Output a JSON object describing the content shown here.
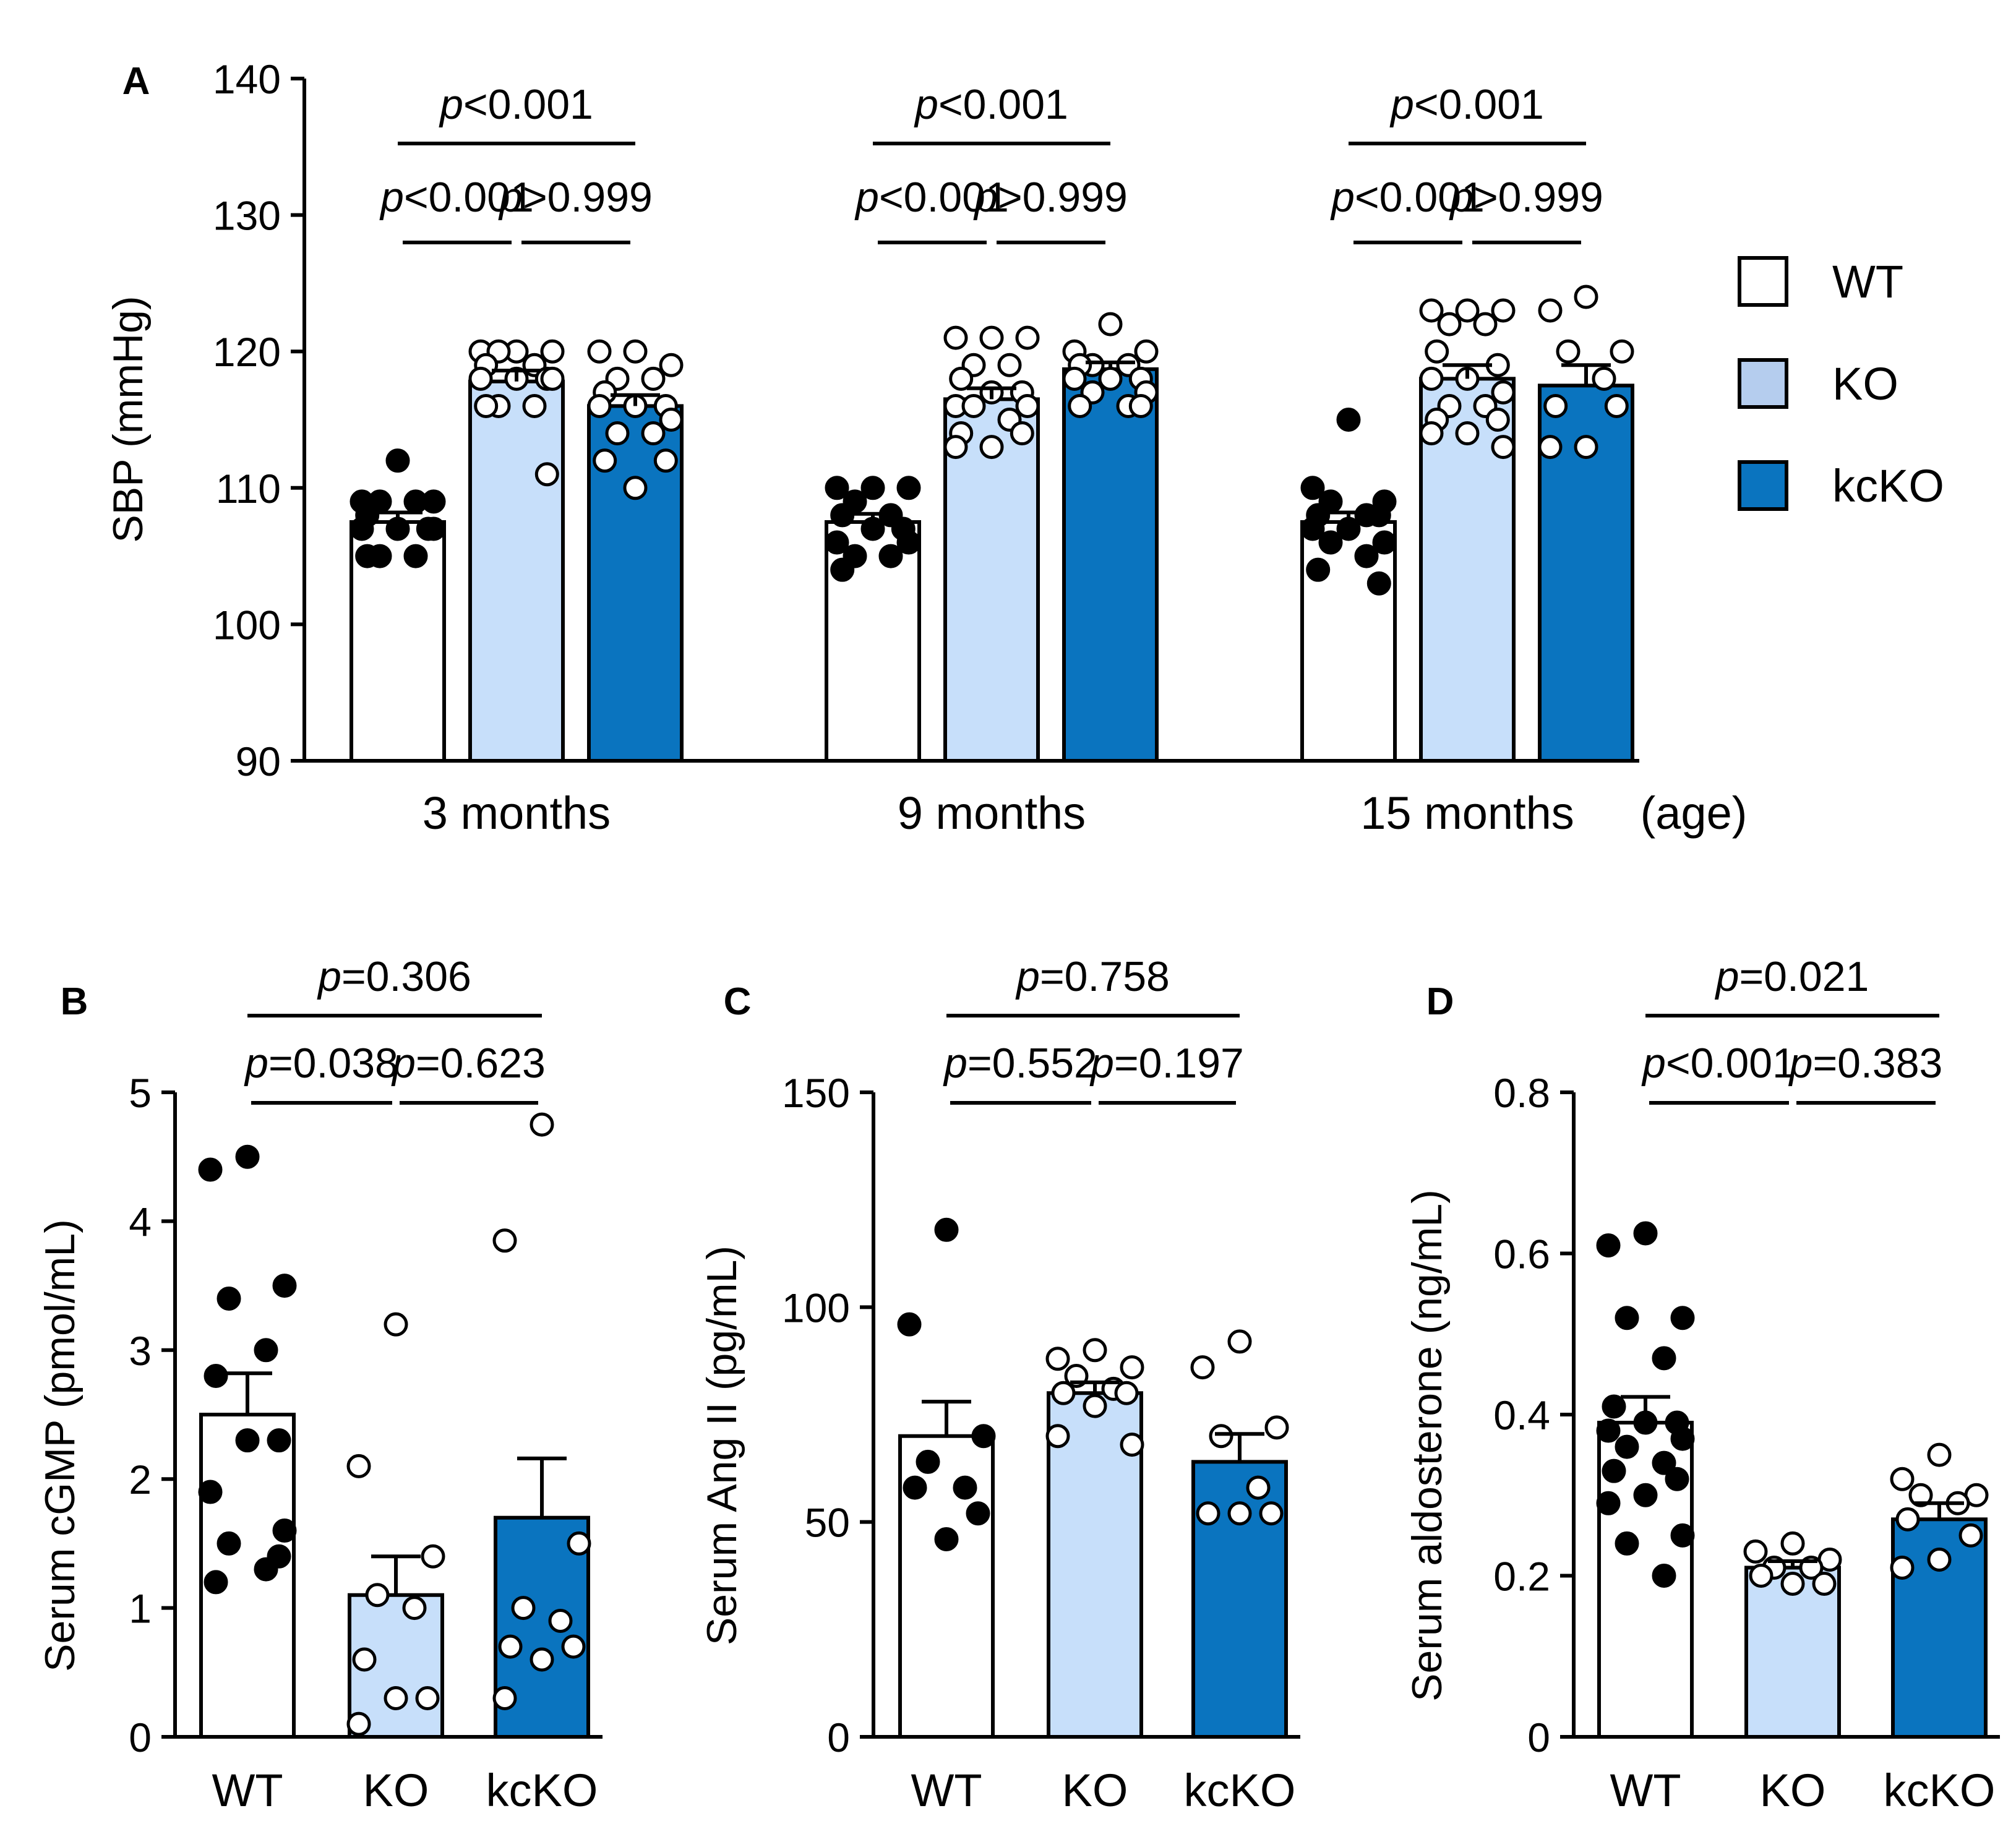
{
  "colors": {
    "WT": "#ffffff",
    "KO": "#c7dffa",
    "kcKO": "#0a74bf",
    "legend_KO": "#b5cdee",
    "ink": "#000000"
  },
  "legend": [
    {
      "name": "WT",
      "color": "#ffffff"
    },
    {
      "name": "KO",
      "color": "#b5cdee"
    },
    {
      "name": "kcKO",
      "color": "#0a74bf"
    }
  ],
  "chart_data": [
    {
      "id": "A",
      "type": "bar",
      "panel_label": "A",
      "ylabel": "SBP (mmHg)",
      "ylim": [
        90,
        140
      ],
      "yticks": [
        "90",
        "100",
        "110",
        "120",
        "130",
        "140"
      ],
      "groups": [
        "3 months",
        "9 months",
        "15 months"
      ],
      "age_label": "(age)",
      "series": [
        {
          "name": "WT",
          "means": [
            107.5,
            107.5,
            107.5
          ],
          "sem": [
            0.7,
            0.6,
            0.7
          ],
          "points": [
            [
              112,
              109,
              109,
              109,
              109,
              108,
              107,
              107,
              107,
              107,
              105,
              105,
              105
            ],
            [
              110,
              110,
              110,
              109,
              108,
              108,
              107,
              107,
              106,
              106,
              105,
              105,
              104
            ],
            [
              115,
              110,
              109,
              109,
              108,
              108,
              108,
              107,
              107,
              106,
              106,
              105,
              104,
              103
            ]
          ]
        },
        {
          "name": "KO",
          "means": [
            117.8,
            116.5,
            118
          ],
          "sem": [
            0.8,
            0.8,
            1.0
          ],
          "points": [
            [
              120,
              120,
              120,
              120,
              119,
              119,
              118,
              118,
              118,
              118,
              116,
              116,
              116,
              111
            ],
            [
              121,
              121,
              121,
              119,
              119,
              118,
              117,
              117,
              116,
              116,
              116,
              115,
              114,
              114,
              113,
              113
            ],
            [
              123,
              123,
              123,
              122,
              122,
              120,
              119,
              118,
              118,
              117,
              116,
              116,
              115,
              115,
              114,
              114,
              113
            ]
          ]
        },
        {
          "name": "kcKO",
          "means": [
            116,
            118.7,
            117.5
          ],
          "sem": [
            0.8,
            0.5,
            1.5
          ],
          "points": [
            [
              120,
              120,
              119,
              118,
              118,
              117,
              116,
              116,
              116,
              115,
              114,
              114,
              112,
              112,
              110
            ],
            [
              122,
              120,
              120,
              119,
              119,
              119,
              118,
              118,
              118,
              117,
              117,
              116,
              116,
              116
            ],
            [
              124,
              123,
              120,
              120,
              118,
              116,
              116,
              113,
              113
            ]
          ]
        }
      ],
      "comparisons": [
        {
          "group": 0,
          "from": 0,
          "to": 2,
          "label": "p<0.001"
        },
        {
          "group": 0,
          "from": 0,
          "to": 1,
          "label": "p<0.001"
        },
        {
          "group": 0,
          "from": 1,
          "to": 2,
          "label": "p>0.999"
        },
        {
          "group": 1,
          "from": 0,
          "to": 2,
          "label": "p<0.001"
        },
        {
          "group": 1,
          "from": 0,
          "to": 1,
          "label": "p<0.001"
        },
        {
          "group": 1,
          "from": 1,
          "to": 2,
          "label": "p>0.999"
        },
        {
          "group": 2,
          "from": 0,
          "to": 2,
          "label": "p<0.001"
        },
        {
          "group": 2,
          "from": 0,
          "to": 1,
          "label": "p<0.001"
        },
        {
          "group": 2,
          "from": 1,
          "to": 2,
          "label": "p>0.999"
        }
      ]
    },
    {
      "id": "B",
      "type": "bar",
      "panel_label": "B",
      "ylabel": "Serum cGMP (pmol/mL)",
      "ylim": [
        0,
        5
      ],
      "yticks": [
        "0",
        "1",
        "2",
        "3",
        "4",
        "5"
      ],
      "categories": [
        "WT",
        "KO",
        "kcKO"
      ],
      "means": [
        2.5,
        1.1,
        1.7
      ],
      "sem": [
        0.32,
        0.3,
        0.46
      ],
      "points": [
        [
          4.5,
          4.4,
          3.5,
          3.4,
          3.0,
          2.8,
          2.3,
          2.3,
          1.9,
          1.6,
          1.5,
          1.3,
          1.2,
          1.4
        ],
        [
          3.2,
          2.1,
          1.4,
          1.1,
          1.0,
          0.6,
          0.3,
          0.3,
          0.1
        ],
        [
          4.75,
          3.85,
          1.5,
          1.0,
          0.9,
          0.7,
          0.7,
          0.6,
          0.3
        ]
      ],
      "comparisons": [
        {
          "from": 0,
          "to": 2,
          "label": "p=0.306"
        },
        {
          "from": 0,
          "to": 1,
          "label": "p=0.038"
        },
        {
          "from": 1,
          "to": 2,
          "label": "p=0.623"
        }
      ]
    },
    {
      "id": "C",
      "type": "bar",
      "panel_label": "C",
      "ylabel": "Serum Ang II (pg/mL)",
      "ylim": [
        0,
        150
      ],
      "yticks": [
        "0",
        "50",
        "100",
        "150"
      ],
      "categories": [
        "WT",
        "KO",
        "kcKO"
      ],
      "means": [
        70,
        80,
        64
      ],
      "sem": [
        8,
        2.5,
        6.5
      ],
      "points": [
        [
          118,
          96,
          70,
          64,
          58,
          58,
          52,
          46
        ],
        [
          90,
          88,
          86,
          84,
          81,
          80,
          80,
          77,
          70,
          68
        ],
        [
          92,
          86,
          72,
          70,
          58,
          52,
          52,
          52
        ]
      ],
      "comparisons": [
        {
          "from": 0,
          "to": 2,
          "label": "p=0.758"
        },
        {
          "from": 0,
          "to": 1,
          "label": "p=0.552"
        },
        {
          "from": 1,
          "to": 2,
          "label": "p=0.197"
        }
      ]
    },
    {
      "id": "D",
      "type": "bar",
      "panel_label": "D",
      "ylabel": "Serum aldosterone (ng/mL)",
      "ylim": [
        0,
        0.8
      ],
      "yticks": [
        "0",
        "0.2",
        "0.4",
        "0.6",
        "0.8"
      ],
      "categories": [
        "WT",
        "KO",
        "kcKO"
      ],
      "means": [
        0.39,
        0.21,
        0.27
      ],
      "sem": [
        0.032,
        0.008,
        0.02
      ],
      "points": [
        [
          0.625,
          0.61,
          0.52,
          0.52,
          0.47,
          0.41,
          0.39,
          0.39,
          0.38,
          0.37,
          0.36,
          0.34,
          0.33,
          0.32,
          0.3,
          0.29,
          0.25,
          0.24,
          0.2
        ],
        [
          0.24,
          0.23,
          0.22,
          0.21,
          0.21,
          0.2,
          0.19,
          0.19
        ],
        [
          0.35,
          0.32,
          0.3,
          0.3,
          0.29,
          0.27,
          0.25,
          0.22,
          0.21
        ]
      ],
      "comparisons": [
        {
          "from": 0,
          "to": 2,
          "label": "p=0.021"
        },
        {
          "from": 0,
          "to": 1,
          "label": "p<0.001"
        },
        {
          "from": 1,
          "to": 2,
          "label": "p=0.383"
        }
      ]
    }
  ]
}
